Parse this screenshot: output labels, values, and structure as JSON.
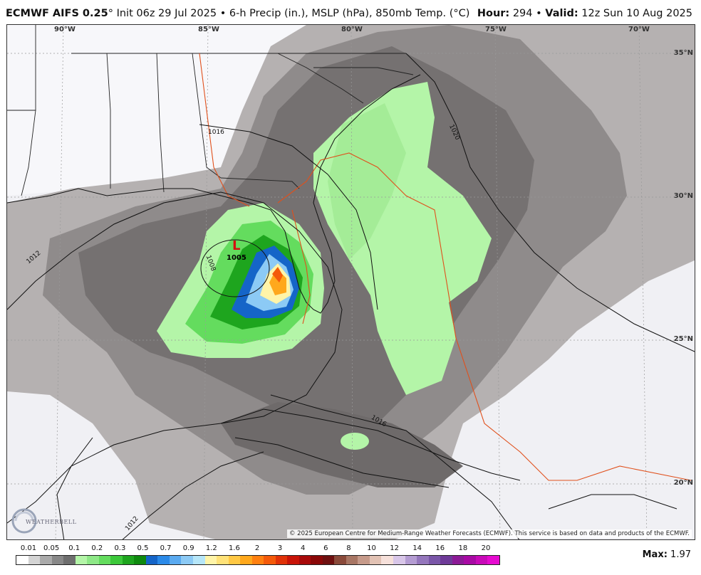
{
  "header": {
    "model": "ECMWF AIFS 0.25",
    "degree": "°",
    "init": "Init 06z 29 Jul 2025",
    "bullet": "•",
    "fields": "6-h Precip (in.), MSLP (hPa), 850mb Temp. (°C)",
    "hour_label": "Hour:",
    "hour_value": "294",
    "valid_label": "Valid:",
    "valid_value": "12z Sun 10 Aug 2025"
  },
  "map": {
    "longitude_labels": [
      "90°W",
      "85°W",
      "80°W",
      "75°W",
      "70°W"
    ],
    "latitude_labels": [
      "35°N",
      "30°N",
      "25°N",
      "20°N"
    ],
    "low_center": {
      "symbol": "L",
      "pressure": "1005"
    },
    "isobars": [
      "1012",
      "1008",
      "1016",
      "1020",
      "1016",
      "1012"
    ],
    "copyright": "© 2025 European Centre for Medium-Range Weather Forecasts (ECMWF). This service is based on data and products of the ECMWF.",
    "logo_icon": "weatherbell-swirl-icon",
    "logo_text": "WEATHERBELL"
  },
  "legend": {
    "labels": [
      "0.01",
      "0.05",
      "0.1",
      "0.2",
      "0.3",
      "0.5",
      "0.7",
      "0.9",
      "1.2",
      "1.6",
      "2",
      "3",
      "4",
      "6",
      "8",
      "10",
      "12",
      "14",
      "16",
      "18",
      "20"
    ],
    "colors": [
      "#ffffff",
      "#d4d4d4",
      "#aaaaaa",
      "#888888",
      "#6e6e6e",
      "#b4f5a8",
      "#8ee887",
      "#64dc5e",
      "#3cc83a",
      "#1ea51e",
      "#0f8a0f",
      "#1565c8",
      "#2b8ae8",
      "#5aaaf0",
      "#8ccaf5",
      "#b6e6f8",
      "#fff4a8",
      "#ffe278",
      "#ffc844",
      "#ffa81c",
      "#ff8010",
      "#f45a0a",
      "#e03208",
      "#c81408",
      "#a80a0a",
      "#8a0808",
      "#6e1010",
      "#8a4a3a",
      "#a87664",
      "#c69a8a",
      "#e2c2b4",
      "#f6e0da",
      "#d8c6e8",
      "#b49cd2",
      "#9476bc",
      "#7a56a8",
      "#6e3a98",
      "#8c1a96",
      "#a80aa4",
      "#c80ab8",
      "#e60ad0"
    ],
    "max_label": "Max:",
    "max_value": "1.97"
  }
}
